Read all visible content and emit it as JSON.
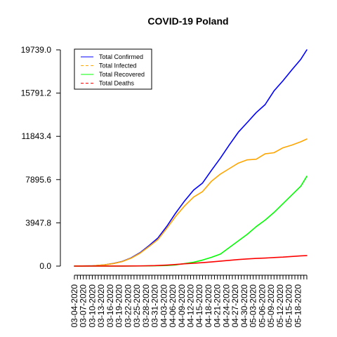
{
  "chart_data": {
    "type": "line",
    "title": "COVID-19 Poland",
    "xlabel": "",
    "ylabel": "",
    "ylim": [
      0,
      19739.0
    ],
    "yticks": [
      0.0,
      3947.8,
      7895.6,
      11843.4,
      15791.2,
      19739.0
    ],
    "ytick_labels": [
      "0.0",
      "3947.8",
      "7895.6",
      "11843.4",
      "15791.2",
      "19739.0"
    ],
    "x_start": "2020-03-04",
    "x_end": "2020-05-21",
    "xtick_labels": [
      "03-04-2020",
      "03-07-2020",
      "03-10-2020",
      "03-13-2020",
      "03-16-2020",
      "03-19-2020",
      "03-22-2020",
      "03-25-2020",
      "03-28-2020",
      "03-31-2020",
      "04-03-2020",
      "04-06-2020",
      "04-09-2020",
      "04-12-2020",
      "04-15-2020",
      "04-18-2020",
      "04-21-2020",
      "04-24-2020",
      "04-27-2020",
      "04-30-2020",
      "05-03-2020",
      "05-06-2020",
      "05-09-2020",
      "05-12-2020",
      "05-15-2020",
      "05-18-2020"
    ],
    "legend_position": "top-left",
    "grid": false,
    "series": [
      {
        "name": "Total Confirmed",
        "color": "#0000ff",
        "dash": "solid",
        "points": [
          [
            "2020-03-04",
            1
          ],
          [
            "2020-03-10",
            22
          ],
          [
            "2020-03-14",
            111
          ],
          [
            "2020-03-17",
            238
          ],
          [
            "2020-03-20",
            425
          ],
          [
            "2020-03-23",
            749
          ],
          [
            "2020-03-26",
            1221
          ],
          [
            "2020-03-29",
            1862
          ],
          [
            "2020-04-01",
            2554
          ],
          [
            "2020-04-04",
            3627
          ],
          [
            "2020-04-07",
            4848
          ],
          [
            "2020-04-10",
            5955
          ],
          [
            "2020-04-13",
            6934
          ],
          [
            "2020-04-16",
            7582
          ],
          [
            "2020-04-19",
            8742
          ],
          [
            "2020-04-22",
            9856
          ],
          [
            "2020-04-25",
            11067
          ],
          [
            "2020-04-28",
            12218
          ],
          [
            "2020-05-01",
            13105
          ],
          [
            "2020-05-04",
            14006
          ],
          [
            "2020-05-07",
            14740
          ],
          [
            "2020-05-10",
            15996
          ],
          [
            "2020-05-13",
            16921
          ],
          [
            "2020-05-16",
            17921
          ],
          [
            "2020-05-19",
            18885
          ],
          [
            "2020-05-21",
            19739
          ]
        ]
      },
      {
        "name": "Total Infected",
        "color": "#ffa500",
        "dash": "dashed",
        "points": [
          [
            "2020-03-04",
            1
          ],
          [
            "2020-03-10",
            22
          ],
          [
            "2020-03-14",
            108
          ],
          [
            "2020-03-17",
            230
          ],
          [
            "2020-03-20",
            408
          ],
          [
            "2020-03-23",
            720
          ],
          [
            "2020-03-26",
            1170
          ],
          [
            "2020-03-29",
            1780
          ],
          [
            "2020-04-01",
            2420
          ],
          [
            "2020-04-04",
            3450
          ],
          [
            "2020-04-07",
            4550
          ],
          [
            "2020-04-10",
            5500
          ],
          [
            "2020-04-13",
            6300
          ],
          [
            "2020-04-16",
            6800
          ],
          [
            "2020-04-19",
            7750
          ],
          [
            "2020-04-22",
            8400
          ],
          [
            "2020-04-25",
            8900
          ],
          [
            "2020-04-28",
            9400
          ],
          [
            "2020-05-01",
            9700
          ],
          [
            "2020-05-04",
            9750
          ],
          [
            "2020-05-07",
            10250
          ],
          [
            "2020-05-10",
            10350
          ],
          [
            "2020-05-13",
            10800
          ],
          [
            "2020-05-16",
            11050
          ],
          [
            "2020-05-19",
            11350
          ],
          [
            "2020-05-21",
            11600
          ]
        ]
      },
      {
        "name": "Total Recovered",
        "color": "#00ff00",
        "dash": "solid",
        "points": [
          [
            "2020-03-04",
            0
          ],
          [
            "2020-03-20",
            5
          ],
          [
            "2020-03-29",
            20
          ],
          [
            "2020-04-04",
            55
          ],
          [
            "2020-04-07",
            110
          ],
          [
            "2020-04-10",
            230
          ],
          [
            "2020-04-13",
            350
          ],
          [
            "2020-04-16",
            550
          ],
          [
            "2020-04-19",
            800
          ],
          [
            "2020-04-22",
            1100
          ],
          [
            "2020-04-25",
            1700
          ],
          [
            "2020-04-28",
            2300
          ],
          [
            "2020-05-01",
            2900
          ],
          [
            "2020-05-04",
            3600
          ],
          [
            "2020-05-07",
            4200
          ],
          [
            "2020-05-10",
            4900
          ],
          [
            "2020-05-13",
            5700
          ],
          [
            "2020-05-16",
            6500
          ],
          [
            "2020-05-19",
            7300
          ],
          [
            "2020-05-21",
            8200
          ]
        ]
      },
      {
        "name": "Total Deaths",
        "color": "#ff0000",
        "dash": "dashed",
        "points": [
          [
            "2020-03-04",
            0
          ],
          [
            "2020-03-12",
            1
          ],
          [
            "2020-03-20",
            5
          ],
          [
            "2020-03-26",
            16
          ],
          [
            "2020-03-31",
            43
          ],
          [
            "2020-04-04",
            94
          ],
          [
            "2020-04-07",
            146
          ],
          [
            "2020-04-10",
            210
          ],
          [
            "2020-04-13",
            257
          ],
          [
            "2020-04-16",
            314
          ],
          [
            "2020-04-19",
            380
          ],
          [
            "2020-04-22",
            455
          ],
          [
            "2020-04-25",
            526
          ],
          [
            "2020-04-28",
            596
          ],
          [
            "2020-05-01",
            651
          ],
          [
            "2020-05-04",
            700
          ],
          [
            "2020-05-07",
            733
          ],
          [
            "2020-05-10",
            780
          ],
          [
            "2020-05-13",
            819
          ],
          [
            "2020-05-16",
            880
          ],
          [
            "2020-05-19",
            933
          ],
          [
            "2020-05-21",
            960
          ]
        ]
      }
    ]
  }
}
